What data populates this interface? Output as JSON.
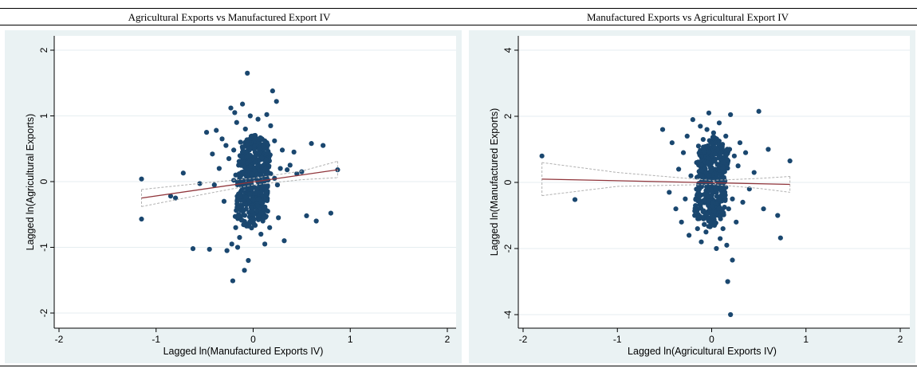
{
  "colors": {
    "panel_bg": "#eaf2f3",
    "point": "#1a476f",
    "fit_line": "#90353b",
    "ci_line": "#b0b0b0",
    "grid": "#e6eef0"
  },
  "titles": {
    "left": "Agricultural Exports vs Manufactured Export IV",
    "right": "Manufactured Exports vs Agricultural Export IV"
  },
  "chart_data": [
    {
      "type": "scatter",
      "title": "Agricultural Exports vs Manufactured Export IV",
      "xlabel": "Lagged ln(Manufactured Exports IV)",
      "ylabel": "Lagged ln(Agricultural Exports)",
      "xlim": [
        -2,
        2
      ],
      "ylim": [
        -2,
        2
      ],
      "xticks": [
        -2,
        -1,
        0,
        1,
        2
      ],
      "yticks": [
        -2,
        -1,
        0,
        1,
        2
      ],
      "xtick_labels": [
        "-2",
        "-1",
        "0",
        "1",
        "2"
      ],
      "ytick_labels": [
        "-2",
        "-1",
        "0",
        "1",
        "2"
      ],
      "grid": "horizontal",
      "fit_line": {
        "x": [
          -1.15,
          0.87
        ],
        "y": [
          -0.25,
          0.18
        ]
      },
      "ci_band": {
        "x": [
          -1.15,
          -0.5,
          0,
          0.5,
          0.87
        ],
        "upper": [
          -0.12,
          -0.02,
          0.05,
          0.16,
          0.31
        ],
        "lower": [
          -0.38,
          -0.19,
          -0.05,
          0.03,
          0.06
        ]
      },
      "points": {
        "x": [
          -1.15,
          -1.15,
          -0.85,
          -0.8,
          -0.72,
          -0.62,
          -0.55,
          -0.48,
          -0.45,
          -0.42,
          -0.4,
          -0.38,
          -0.35,
          -0.32,
          -0.3,
          -0.28,
          -0.27,
          -0.25,
          -0.23,
          -0.22,
          -0.21,
          -0.2,
          -0.19,
          -0.18,
          -0.17,
          -0.16,
          -0.15,
          -0.14,
          -0.13,
          -0.12,
          -0.11,
          -0.1,
          -0.09,
          -0.08,
          -0.07,
          -0.06,
          -0.05,
          -0.04,
          -0.03,
          -0.02,
          -0.01,
          0,
          0.01,
          0.02,
          0.03,
          0.04,
          0.05,
          0.06,
          0.07,
          0.08,
          0.09,
          0.1,
          0.11,
          0.12,
          0.13,
          0.14,
          0.15,
          0.16,
          0.17,
          0.18,
          0.2,
          0.22,
          0.24,
          0.26,
          0.28,
          0.3,
          0.32,
          0.35,
          0.38,
          0.42,
          0.45,
          0.5,
          0.55,
          0.6,
          0.65,
          0.72,
          0.8,
          0.87,
          -0.06,
          -0.08,
          0.02,
          0.12,
          -0.15,
          0.18,
          -0.2,
          0.05,
          0.22,
          -0.1,
          0.08,
          -0.03,
          0.15,
          -0.12,
          0.25,
          0.0,
          -0.05,
          0.1,
          -0.18,
          0.04,
          0.06,
          -0.07,
          0.03,
          -0.02,
          0.09,
          -0.09,
          0.13,
          -0.14,
          0.01,
          -0.01,
          0.07,
          -0.04,
          0.11,
          -0.11,
          0.02,
          -0.06
        ],
        "y": [
          0.04,
          -0.57,
          -0.22,
          -0.25,
          0.13,
          -1.02,
          -0.03,
          0.75,
          -1.03,
          0.42,
          -0.05,
          0.78,
          0.2,
          0.65,
          -0.3,
          0.55,
          -1.05,
          0.35,
          1.12,
          -0.95,
          -1.51,
          0.48,
          1.05,
          -0.7,
          0.9,
          -1.0,
          0.25,
          -0.85,
          0.6,
          -0.4,
          1.18,
          0.15,
          -1.35,
          0.8,
          -0.2,
          0.45,
          -1.2,
          0.3,
          1.0,
          -0.6,
          0.1,
          0.05,
          -0.3,
          0.7,
          0.2,
          -0.5,
          0.95,
          -0.15,
          0.4,
          -0.8,
          0.65,
          -0.1,
          0.5,
          -0.95,
          0.3,
          1.02,
          -0.45,
          0.22,
          -0.7,
          0.85,
          1.38,
          0.05,
          1.22,
          -0.55,
          0.2,
          0.48,
          -0.9,
          0.18,
          0.25,
          0.45,
          0.12,
          0.15,
          -0.52,
          0.58,
          -0.6,
          0.55,
          -0.48,
          0.18,
          1.65,
          0.6,
          -0.22,
          0.35,
          -0.5,
          0.12,
          0.02,
          -0.1,
          0.62,
          0.28,
          -0.35,
          0.4,
          0.15,
          -0.25,
          -0.05,
          0.22,
          0.5,
          -0.6,
          0.1,
          -0.15,
          0.33,
          0.08,
          -0.4,
          0.18,
          -0.12,
          0.42,
          -0.2,
          0.05,
          0.3,
          -0.3,
          0.12,
          -0.08,
          0.25,
          -0.45,
          0.38,
          -0.18
        ]
      }
    },
    {
      "type": "scatter",
      "title": "Manufactured Exports vs Agricultural Export IV",
      "xlabel": "Lagged ln(Agricultural Exports IV)",
      "ylabel": "Lagged ln(Manufactured Exports)",
      "xlim": [
        -2,
        2
      ],
      "ylim": [
        -4,
        4
      ],
      "xticks": [
        -2,
        -1,
        0,
        1,
        2
      ],
      "yticks": [
        -4,
        -2,
        0,
        2,
        4
      ],
      "xtick_labels": [
        "-2",
        "-1",
        "0",
        "1",
        "2"
      ],
      "ytick_labels": [
        "-4",
        "-2",
        "0",
        "2",
        "4"
      ],
      "grid": "horizontal",
      "fit_line": {
        "x": [
          -1.8,
          0.83
        ],
        "y": [
          0.1,
          -0.06
        ]
      },
      "ci_band": {
        "x": [
          -1.8,
          -1.0,
          0,
          0.5,
          0.83
        ],
        "upper": [
          0.6,
          0.3,
          0.06,
          0.12,
          0.18
        ],
        "lower": [
          -0.4,
          -0.12,
          -0.06,
          -0.18,
          -0.3
        ]
      },
      "points": {
        "x": [
          -1.8,
          -1.45,
          -0.52,
          -0.45,
          -0.42,
          -0.38,
          -0.35,
          -0.32,
          -0.3,
          -0.28,
          -0.26,
          -0.24,
          -0.22,
          -0.2,
          -0.18,
          -0.16,
          -0.15,
          -0.14,
          -0.13,
          -0.12,
          -0.11,
          -0.1,
          -0.09,
          -0.08,
          -0.07,
          -0.06,
          -0.05,
          -0.04,
          -0.03,
          -0.02,
          -0.01,
          0,
          0.01,
          0.02,
          0.03,
          0.04,
          0.05,
          0.06,
          0.07,
          0.08,
          0.09,
          0.1,
          0.11,
          0.12,
          0.13,
          0.14,
          0.15,
          0.16,
          0.17,
          0.18,
          0.19,
          0.2,
          0.22,
          0.24,
          0.26,
          0.28,
          0.3,
          0.33,
          0.36,
          0.4,
          0.45,
          0.5,
          0.55,
          0.6,
          0.7,
          0.73,
          0.83,
          0.05,
          0.17,
          0.2,
          0.22,
          -0.03,
          0.04,
          -0.08,
          0.1,
          -0.12,
          0.06,
          -0.05,
          0.13,
          -0.15,
          0.02,
          -0.01,
          0.08,
          -0.1,
          0.15,
          0.0,
          -0.06,
          0.12,
          -0.02,
          0.03
        ],
        "y": [
          0.8,
          -0.52,
          1.6,
          -0.3,
          1.2,
          -0.8,
          0.4,
          -1.2,
          0.9,
          -0.5,
          1.4,
          -1.6,
          0.2,
          1.9,
          -1.0,
          0.6,
          -1.4,
          1.1,
          -0.2,
          1.7,
          -1.8,
          0.5,
          1.3,
          -0.9,
          0.8,
          -1.5,
          1.6,
          -0.4,
          2.1,
          -1.1,
          0.3,
          1.0,
          -0.7,
          1.5,
          -1.3,
          0.7,
          -2.0,
          1.2,
          -0.6,
          1.8,
          -1.7,
          0.4,
          1.1,
          -1.4,
          0.9,
          -0.3,
          1.4,
          -1.9,
          0.6,
          -0.8,
          1.0,
          2.05,
          -0.5,
          0.8,
          -1.2,
          0.5,
          1.2,
          -0.6,
          0.9,
          -0.2,
          0.3,
          2.15,
          -0.8,
          1.0,
          -1.0,
          -1.68,
          0.65,
          -0.3,
          -3.0,
          -4.0,
          -2.35,
          0.1,
          -0.2,
          0.35,
          -0.45,
          0.2,
          0.55,
          -0.1,
          0.15,
          -0.35,
          0.7,
          0.05,
          -0.6,
          0.25,
          -0.15,
          0.45,
          -0.25,
          0.3,
          -0.5,
          0.1
        ]
      }
    }
  ]
}
